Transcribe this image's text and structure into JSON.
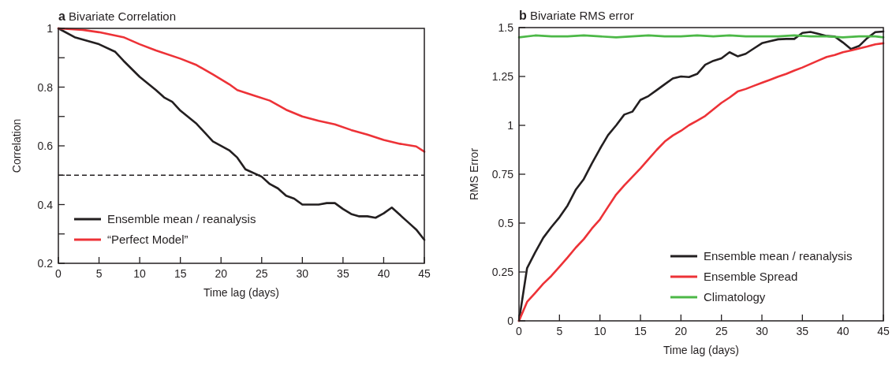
{
  "chart_data": [
    {
      "type": "line",
      "title": "a Bivariate Correlation",
      "xlabel": "Time lag (days)",
      "ylabel": "Correlation",
      "xlim": [
        0,
        45
      ],
      "xticks": [
        0,
        5,
        10,
        15,
        20,
        25,
        30,
        35,
        40,
        45
      ],
      "ylim": [
        0.2,
        1
      ],
      "yticks": [
        0.2,
        {
          "value": 0.3,
          "label": null
        },
        0.4,
        {
          "value": 0.5,
          "label": null
        },
        0.6,
        {
          "value": 0.7,
          "label": null
        },
        0.8,
        {
          "value": 0.9,
          "label": null
        },
        1
      ],
      "legend": "bottom left",
      "line_style": "solid",
      "ref_lines": [
        {
          "axis": "y",
          "value": 0.5,
          "color": "#231f20",
          "line_style": "dashed"
        }
      ],
      "series": [
        {
          "name": "Ensemble mean / reanalysis",
          "color": "#231f20",
          "x": [
            0,
            2,
            5,
            7,
            8,
            10,
            12,
            13,
            14,
            15,
            17,
            19,
            21,
            22,
            23,
            25,
            26,
            27,
            28,
            29,
            30,
            32,
            33,
            34,
            35,
            36,
            37,
            38,
            39,
            40,
            41,
            42,
            43,
            44,
            45
          ],
          "values": [
            1,
            0.97,
            0.946,
            0.92,
            0.89,
            0.835,
            0.79,
            0.765,
            0.75,
            0.72,
            0.675,
            0.615,
            0.585,
            0.56,
            0.52,
            0.495,
            0.47,
            0.455,
            0.43,
            0.42,
            0.4,
            0.4,
            0.405,
            0.405,
            0.385,
            0.368,
            0.36,
            0.36,
            0.355,
            0.37,
            0.39,
            0.365,
            0.34,
            0.315,
            0.28
          ]
        },
        {
          "name": "“Perfect Model”",
          "color": "#ed3237",
          "x": [
            0,
            3,
            5,
            8,
            10,
            12,
            15,
            17,
            19,
            21,
            22,
            24,
            26,
            28,
            30,
            32,
            34,
            36,
            38,
            40,
            42,
            44,
            45
          ],
          "values": [
            1,
            0.995,
            0.987,
            0.97,
            0.946,
            0.925,
            0.897,
            0.875,
            0.843,
            0.81,
            0.79,
            0.772,
            0.754,
            0.723,
            0.7,
            0.685,
            0.673,
            0.654,
            0.638,
            0.62,
            0.607,
            0.598,
            0.58
          ]
        }
      ]
    },
    {
      "type": "line",
      "title": "b Bivariate RMS error",
      "xlabel": "Time lag (days)",
      "ylabel": "RMS Error",
      "xlim": [
        0,
        45
      ],
      "xticks": [
        0,
        5,
        10,
        15,
        20,
        25,
        30,
        35,
        40,
        45
      ],
      "ylim": [
        0,
        1.5
      ],
      "yticks": [
        0,
        0.25,
        0.5,
        0.75,
        1,
        1.25,
        1.5
      ],
      "legend": "bottom right",
      "line_style": "solid",
      "series": [
        {
          "name": "Ensemble mean / reanalysis",
          "color": "#231f20",
          "x": [
            0,
            1,
            2,
            3,
            4,
            5,
            6,
            7,
            8,
            9,
            10,
            11,
            12,
            13,
            14,
            15,
            16,
            17,
            18,
            19,
            20,
            21,
            22,
            23,
            24,
            25,
            26,
            27,
            28,
            29,
            30,
            31,
            32,
            33,
            34,
            35,
            36,
            37,
            38,
            39,
            40,
            41,
            42,
            43,
            44,
            45
          ],
          "values": [
            0,
            0.27,
            0.35,
            0.425,
            0.48,
            0.53,
            0.59,
            0.67,
            0.725,
            0.805,
            0.88,
            0.95,
            1,
            1.055,
            1.07,
            1.13,
            1.15,
            1.18,
            1.21,
            1.24,
            1.25,
            1.247,
            1.263,
            1.31,
            1.33,
            1.343,
            1.374,
            1.353,
            1.366,
            1.393,
            1.42,
            1.43,
            1.44,
            1.442,
            1.442,
            1.473,
            1.478,
            1.468,
            1.457,
            1.454,
            1.424,
            1.39,
            1.406,
            1.446,
            1.477,
            1.48
          ]
        },
        {
          "name": "Ensemble Spread",
          "color": "#ed3237",
          "x": [
            0,
            1,
            2,
            3,
            4,
            5,
            6,
            7,
            8,
            9,
            10,
            11,
            12,
            13,
            14,
            15,
            16,
            17,
            18,
            19,
            20,
            21,
            22,
            23,
            24,
            25,
            26,
            27,
            28,
            29,
            30,
            31,
            32,
            33,
            34,
            35,
            36,
            37,
            38,
            39,
            40,
            41,
            42,
            43,
            44,
            45
          ],
          "values": [
            0,
            0.097,
            0.143,
            0.19,
            0.23,
            0.277,
            0.324,
            0.374,
            0.418,
            0.472,
            0.519,
            0.583,
            0.646,
            0.693,
            0.736,
            0.78,
            0.827,
            0.874,
            0.917,
            0.948,
            0.972,
            1.001,
            1.024,
            1.048,
            1.082,
            1.115,
            1.142,
            1.173,
            1.186,
            1.202,
            1.218,
            1.233,
            1.249,
            1.263,
            1.28,
            1.296,
            1.314,
            1.332,
            1.35,
            1.36,
            1.374,
            1.383,
            1.393,
            1.403,
            1.414,
            1.42
          ]
        },
        {
          "name": "Climatology",
          "color": "#4cb847",
          "x": [
            0,
            2,
            4,
            6,
            8,
            10,
            12,
            14,
            16,
            18,
            20,
            22,
            24,
            26,
            28,
            30,
            32,
            34,
            36,
            38,
            40,
            42,
            44,
            45
          ],
          "values": [
            1.45,
            1.46,
            1.455,
            1.455,
            1.46,
            1.455,
            1.45,
            1.455,
            1.46,
            1.455,
            1.455,
            1.46,
            1.455,
            1.46,
            1.455,
            1.455,
            1.455,
            1.46,
            1.455,
            1.455,
            1.45,
            1.455,
            1.455,
            1.45
          ]
        }
      ]
    }
  ]
}
